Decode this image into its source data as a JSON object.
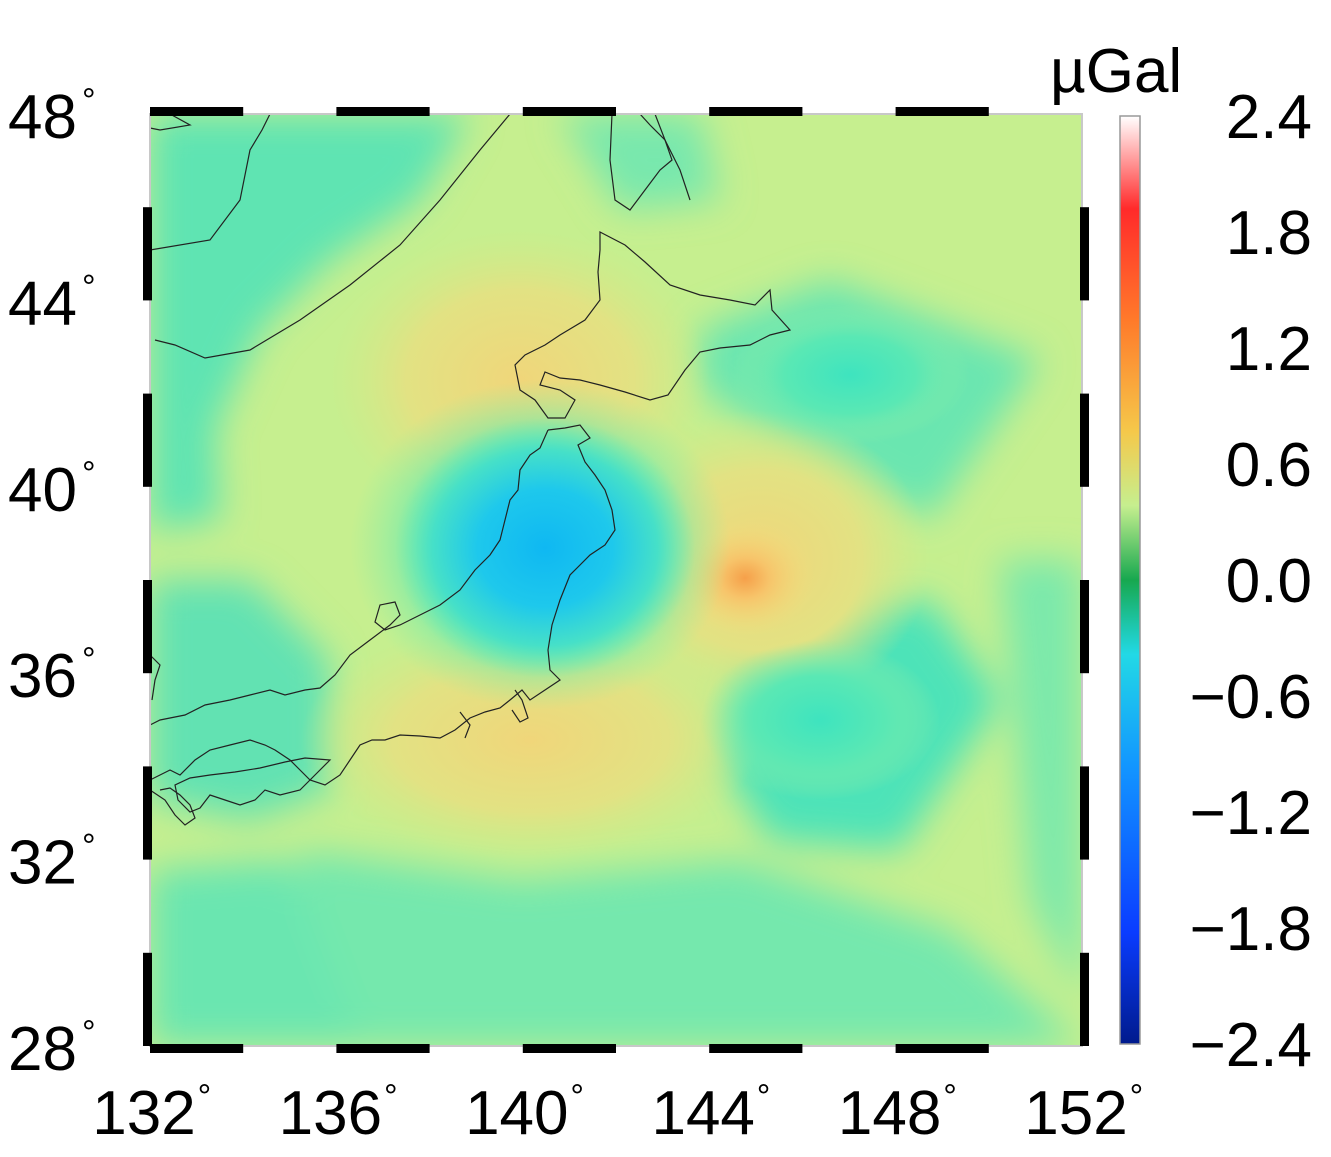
{
  "map": {
    "region": {
      "lon_min": 132,
      "lon_max": 152,
      "lat_min": 28,
      "lat_max": 48
    },
    "x_ticks": [
      "132",
      "136",
      "140",
      "144",
      "148",
      "152"
    ],
    "y_ticks": [
      "28",
      "32",
      "36",
      "40",
      "44",
      "48"
    ],
    "degree_symbol": "°",
    "frame_style": "alternating black/white fancy frame",
    "coastlines": "Japan, Korea, Russian Far East, Sakhalin"
  },
  "colorbar": {
    "unit": "µGal",
    "ticks": [
      "2.4",
      "1.8",
      "1.2",
      "0.6",
      "0.0",
      "−0.6",
      "−1.2",
      "−1.8",
      "−2.4"
    ],
    "colors": {
      "max": "#ffffff",
      "high": "#ff2a2a",
      "mid_high": "#f5c84a",
      "zero": "#17a84f",
      "mid_low": "#22d9e6",
      "low": "#0a3cff",
      "min": "#001a8c"
    }
  },
  "field": {
    "background": "#c6ef8f",
    "anomalies": [
      {
        "name": "negative-low",
        "lon": 140.3,
        "lat": 38.6,
        "value": -1.1
      },
      {
        "name": "positive-high",
        "lon": 145.0,
        "lat": 37.9,
        "value": 0.85
      },
      {
        "name": "positive-north",
        "lon": 139.8,
        "lat": 42.5,
        "value": 0.45
      },
      {
        "name": "positive-south",
        "lon": 140.0,
        "lat": 34.0,
        "value": 0.45
      },
      {
        "name": "negative-east",
        "lon": 146.5,
        "lat": 42.0,
        "value": -0.5
      },
      {
        "name": "negative-southeast",
        "lon": 146.0,
        "lat": 35.0,
        "value": -0.55
      }
    ]
  }
}
